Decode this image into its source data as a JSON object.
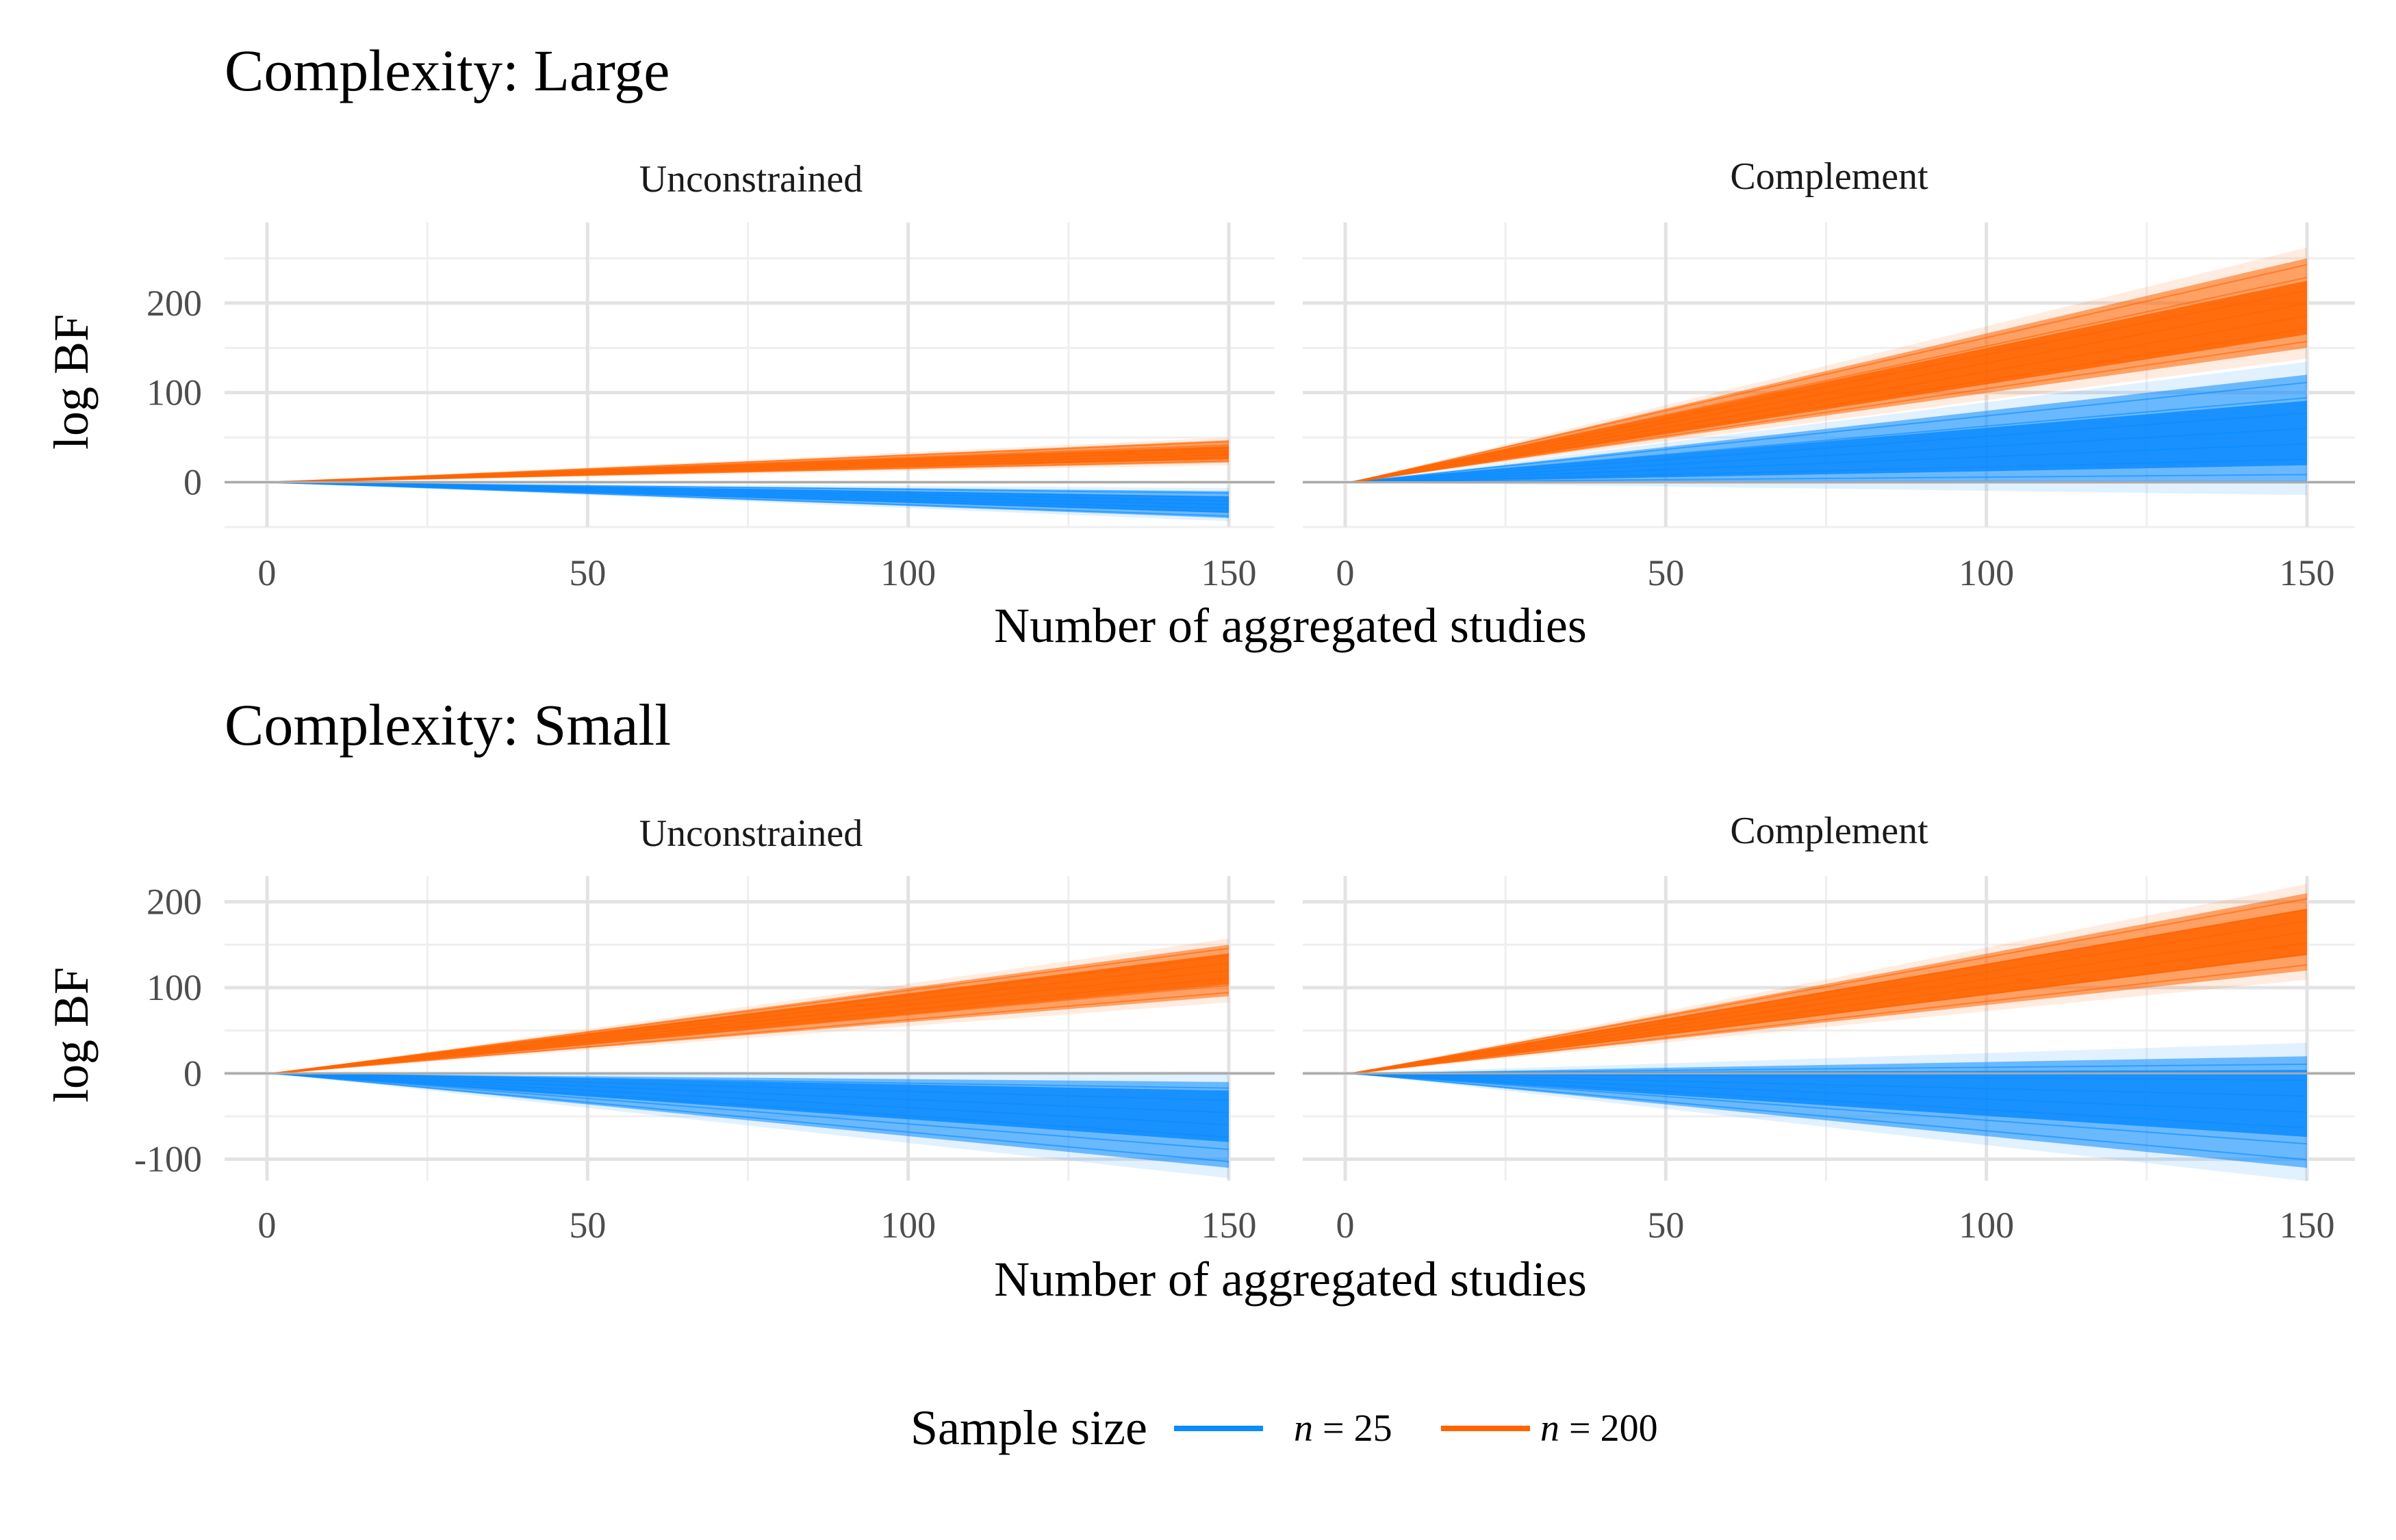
{
  "colors": {
    "n25": "#0A8BFF",
    "n200": "#FF6400",
    "grid_major": "#E3E3E3",
    "grid_minor": "#EFEFEF",
    "zero_line": "#AAAAAA"
  },
  "legend": {
    "title": "Sample size",
    "n25_prefix": "n",
    "n25_value": " = 25",
    "n200_prefix": "n",
    "n200_value": " = 200"
  },
  "chart_data": [
    {
      "type": "line",
      "title": "Complexity: Large",
      "xlabel": "Number of aggregated studies",
      "ylabel": "log BF",
      "xlim": [
        0,
        150
      ],
      "ylim": [
        -50,
        290
      ],
      "xticks": [
        "0",
        "50",
        "100",
        "150"
      ],
      "yticks": [
        0,
        100,
        200
      ],
      "ytick_labels": [
        "0",
        "100",
        "200"
      ],
      "grid": true,
      "legend_position": "bottom",
      "facets": [
        {
          "label": "Unconstrained",
          "series": [
            {
              "name": "n = 25",
              "x": [
                1,
                150
              ],
              "band_low": [
                0,
                -40
              ],
              "band_high": [
                0,
                -10
              ],
              "center": [
                0,
                -25
              ]
            },
            {
              "name": "n = 200",
              "x": [
                1,
                150
              ],
              "band_low": [
                0,
                22
              ],
              "band_high": [
                0,
                47
              ],
              "center": [
                0,
                33
              ]
            }
          ]
        },
        {
          "label": "Complement",
          "series": [
            {
              "name": "n = 25",
              "x": [
                1,
                150
              ],
              "band_low": [
                0,
                0
              ],
              "band_high": [
                0,
                120
              ],
              "center": [
                0,
                55
              ]
            },
            {
              "name": "n = 200",
              "x": [
                1,
                150
              ],
              "band_low": [
                0,
                150
              ],
              "band_high": [
                0,
                250
              ],
              "center": [
                0,
                195
              ]
            }
          ]
        }
      ]
    },
    {
      "type": "line",
      "title": "Complexity: Small",
      "xlabel": "Number of aggregated studies",
      "ylabel": "log BF",
      "xlim": [
        0,
        150
      ],
      "ylim": [
        -125,
        230
      ],
      "xticks": [
        "0",
        "50",
        "100",
        "150"
      ],
      "yticks": [
        -100,
        0,
        100,
        200
      ],
      "ytick_labels": [
        "-100",
        "0",
        "100",
        "200"
      ],
      "grid": true,
      "legend_position": "bottom",
      "facets": [
        {
          "label": "Unconstrained",
          "series": [
            {
              "name": "n = 25",
              "x": [
                1,
                150
              ],
              "band_low": [
                0,
                -110
              ],
              "band_high": [
                0,
                -10
              ],
              "center": [
                0,
                -50
              ]
            },
            {
              "name": "n = 200",
              "x": [
                1,
                150
              ],
              "band_low": [
                0,
                90
              ],
              "band_high": [
                0,
                150
              ],
              "center": [
                0,
                122
              ]
            }
          ]
        },
        {
          "label": "Complement",
          "series": [
            {
              "name": "n = 25",
              "x": [
                1,
                150
              ],
              "band_low": [
                0,
                -110
              ],
              "band_high": [
                0,
                20
              ],
              "center": [
                0,
                -35
              ]
            },
            {
              "name": "n = 200",
              "x": [
                1,
                150
              ],
              "band_low": [
                0,
                120
              ],
              "band_high": [
                0,
                210
              ],
              "center": [
                0,
                165
              ]
            }
          ]
        }
      ]
    }
  ]
}
